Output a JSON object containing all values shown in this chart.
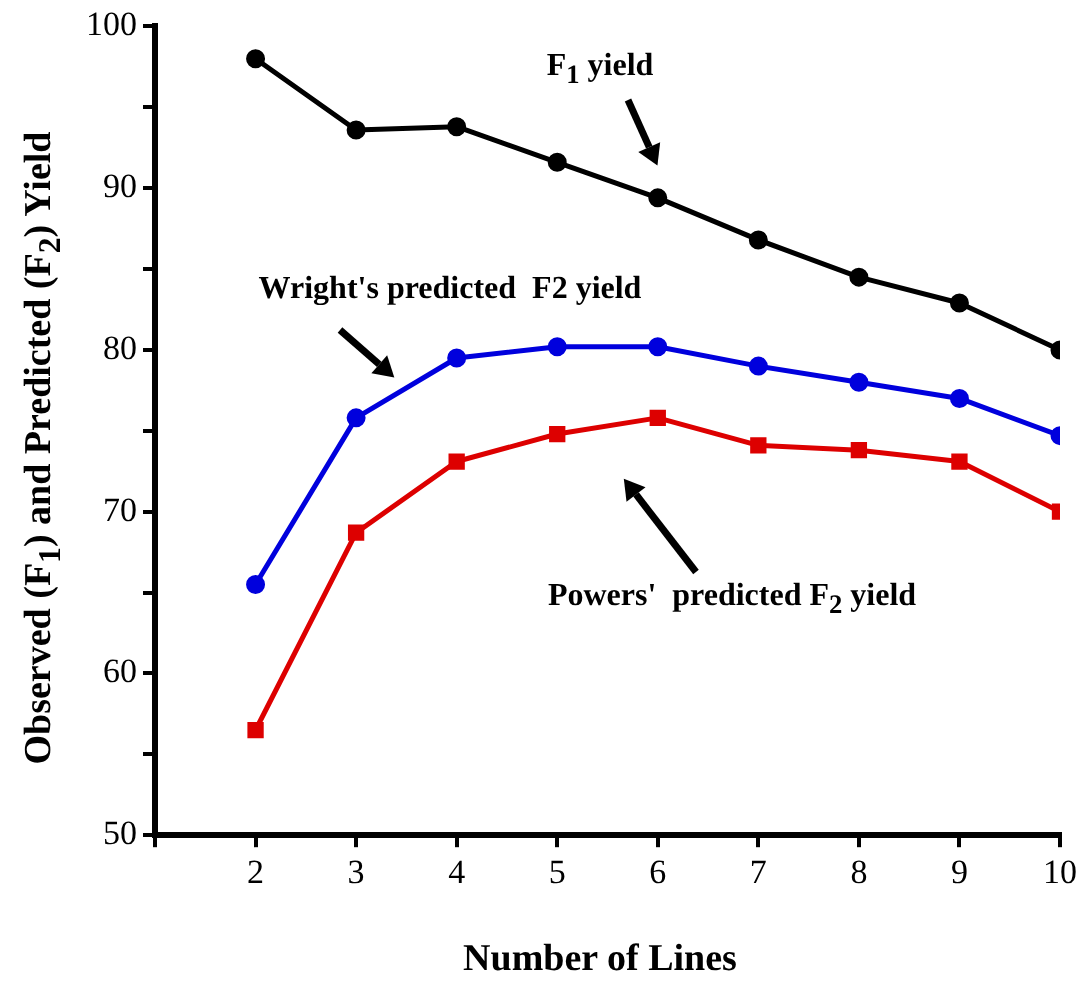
{
  "chart_data": {
    "type": "line",
    "xlabel": "Number of Lines",
    "ylabel": "Observed (F$_{1}$) and Predicted (F$_{2}$) Yield",
    "x": [
      2,
      3,
      4,
      5,
      6,
      7,
      8,
      9,
      10
    ],
    "xlim": [
      1,
      10
    ],
    "xticks": [
      {
        "value": 1,
        "label": null
      },
      2,
      3,
      4,
      5,
      6,
      7,
      8,
      9,
      10
    ],
    "ylim": [
      50,
      100
    ],
    "yticks": [
      50,
      {
        "value": 55,
        "label": null
      },
      60,
      {
        "value": 65,
        "label": null
      },
      70,
      {
        "value": 75,
        "label": null
      },
      80,
      {
        "value": 85,
        "label": null
      },
      90,
      {
        "value": 95,
        "label": null
      },
      100
    ],
    "grid": false,
    "legend": false,
    "line_style": "solid",
    "series": [
      {
        "color": "#000000",
        "marker": "circle",
        "values": [
          98.0,
          93.6,
          93.8,
          91.6,
          89.4,
          86.8,
          84.5,
          82.9,
          80.0
        ]
      },
      {
        "color": "#0000dd",
        "marker": "circle",
        "values": [
          65.5,
          75.8,
          79.5,
          80.2,
          80.2,
          79.0,
          78.0,
          77.0,
          74.7
        ]
      },
      {
        "color": "#dd0000",
        "marker": "square",
        "values": [
          56.5,
          68.7,
          73.1,
          74.8,
          75.8,
          74.1,
          73.8,
          73.1,
          70.0
        ]
      }
    ],
    "annotations": [
      "F$_{1}$ yield",
      {
        "text": "Wright's predicted  F2 yield",
        "x": 3.5,
        "y": 77.65
      },
      "Powers'  predicted F$_{2}$ yield"
    ]
  }
}
